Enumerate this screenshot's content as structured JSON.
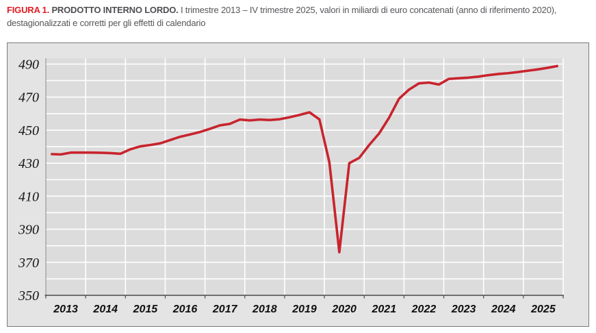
{
  "header": {
    "figure_label": "FIGURA 1.",
    "title": "PRODOTTO INTERNO LORDO.",
    "subtitle": "I trimestre 2013 – IV trimestre 2025, valori in miliardi di euro concatenati (anno di riferimento 2020), destagionalizzati e corretti per gli effetti di calendario"
  },
  "chart_data": {
    "type": "line",
    "title": "Prodotto interno lordo",
    "xlabel": "",
    "ylabel": "valori in miliardi di euro concatenati (anno di riferimento 2020)",
    "ylim": [
      350,
      495
    ],
    "ytick_labels": [
      350,
      370,
      390,
      410,
      430,
      450,
      470,
      490
    ],
    "gridline_step": 10,
    "grid": "on",
    "legend_position": "none",
    "years": [
      "2013",
      "2014",
      "2015",
      "2016",
      "2017",
      "2018",
      "2019",
      "2020",
      "2021",
      "2022",
      "2023",
      "2024",
      "2025"
    ],
    "x": [
      "I 2013",
      "II 2013",
      "III 2013",
      "IV 2013",
      "I 2014",
      "II 2014",
      "III 2014",
      "IV 2014",
      "I 2015",
      "II 2015",
      "III 2015",
      "IV 2015",
      "I 2016",
      "II 2016",
      "III 2016",
      "IV 2016",
      "I 2017",
      "II 2017",
      "III 2017",
      "IV 2017",
      "I 2018",
      "II 2018",
      "III 2018",
      "IV 2018",
      "I 2019",
      "II 2019",
      "III 2019",
      "IV 2019",
      "I 2020",
      "II 2020",
      "III 2020",
      "IV 2020",
      "I 2021",
      "II 2021",
      "III 2021",
      "IV 2021",
      "I 2022",
      "II 2022",
      "III 2022",
      "IV 2022",
      "I 2023",
      "II 2023",
      "III 2023",
      "IV 2023",
      "I 2024",
      "II 2024",
      "III 2024",
      "IV 2024",
      "I 2025",
      "II 2025",
      "III 2025",
      "IV 2025"
    ],
    "series": [
      {
        "name": "PIL destagionalizzato e corretto per gli effetti di calendario",
        "color": "#c8242d",
        "values": [
          435.5,
          435.3,
          436.4,
          436.4,
          436.4,
          436.3,
          436.1,
          435.7,
          438.4,
          440.2,
          441.0,
          442.0,
          444.0,
          446.0,
          447.4,
          448.9,
          450.8,
          452.9,
          453.8,
          456.4,
          455.9,
          456.4,
          456.1,
          456.6,
          457.8,
          459.2,
          460.8,
          456.5,
          430.5,
          376.1,
          430.0,
          433.2,
          441.0,
          448.0,
          457.5,
          469.0,
          474.5,
          478.3,
          478.8,
          477.6,
          481.0,
          481.4,
          481.8,
          482.4,
          483.3,
          484.0,
          484.5,
          485.2,
          486.0,
          486.8,
          487.8,
          488.9
        ]
      }
    ],
    "colors": {
      "line": "#c8242d",
      "plot_background": "#dcdcdc",
      "outer_background": "#e4e4e4",
      "gridline": "#ffffff",
      "axis": "#4a4a4a",
      "figure_label_red": "#e01b22"
    }
  }
}
